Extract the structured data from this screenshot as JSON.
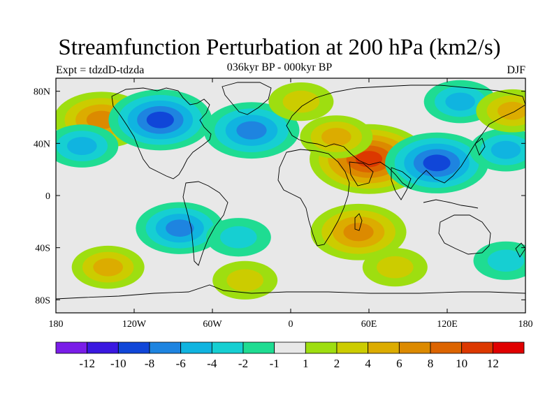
{
  "title": "Streamfunction Perturbation at 200 hPa (km2/s)",
  "left_label": "Expt = tdzdD-tdzda",
  "center_label": "036kyr BP - 000kyr BP",
  "right_label": "DJF",
  "lon_ticks": [
    "180",
    "120W",
    "60W",
    "0",
    "60E",
    "120E",
    "180"
  ],
  "lat_ticks": [
    "80N",
    "40N",
    "0",
    "40S",
    "80S"
  ],
  "colorbar": {
    "colors": [
      "#7a1de8",
      "#3a18e0",
      "#1046d8",
      "#1e84e0",
      "#10b4e0",
      "#16cfd2",
      "#1fdc92",
      "#e8e8e8",
      "#9ede10",
      "#cccc00",
      "#dcac00",
      "#dc8a00",
      "#dc6400",
      "#dc3800",
      "#e00000"
    ],
    "labels": [
      "-12",
      "-10",
      "-8",
      "-6",
      "-4",
      "-2",
      "-1",
      "1",
      "2",
      "4",
      "6",
      "8",
      "10",
      "12"
    ]
  },
  "chart_data": {
    "type": "heatmap",
    "title": "Streamfunction Perturbation at 200 hPa (km2/s)",
    "subtitle": "036kyr BP - 000kyr BP",
    "projection": "cylindrical equidistant",
    "lon_range": [
      -180,
      180
    ],
    "lat_range": [
      -90,
      90
    ],
    "levels": [
      -12,
      -10,
      -8,
      -6,
      -4,
      -2,
      -1,
      1,
      2,
      4,
      6,
      8,
      10,
      12
    ],
    "features": [
      {
        "lon": 60,
        "lat": 28,
        "value": 10
      },
      {
        "lon": -145,
        "lat": 58,
        "value": 7
      },
      {
        "lon": -100,
        "lat": 58,
        "value": -8
      },
      {
        "lon": -30,
        "lat": 50,
        "value": -7
      },
      {
        "lon": 112,
        "lat": 25,
        "value": -8
      },
      {
        "lon": 52,
        "lat": -28,
        "value": 7
      },
      {
        "lon": -85,
        "lat": -25,
        "value": -6
      },
      {
        "lon": -160,
        "lat": 38,
        "value": -4
      },
      {
        "lon": 165,
        "lat": 35,
        "value": -4
      },
      {
        "lon": 130,
        "lat": 72,
        "value": -4
      },
      {
        "lon": -40,
        "lat": -32,
        "value": -3
      },
      {
        "lon": 170,
        "lat": 65,
        "value": 4
      },
      {
        "lon": 35,
        "lat": 45,
        "value": 4
      },
      {
        "lon": -140,
        "lat": -55,
        "value": 4
      },
      {
        "lon": 80,
        "lat": -55,
        "value": 3
      },
      {
        "lon": 165,
        "lat": -50,
        "value": -3
      },
      {
        "lon": 8,
        "lat": 72,
        "value": 3
      },
      {
        "lon": -35,
        "lat": -65,
        "value": 3
      }
    ]
  }
}
